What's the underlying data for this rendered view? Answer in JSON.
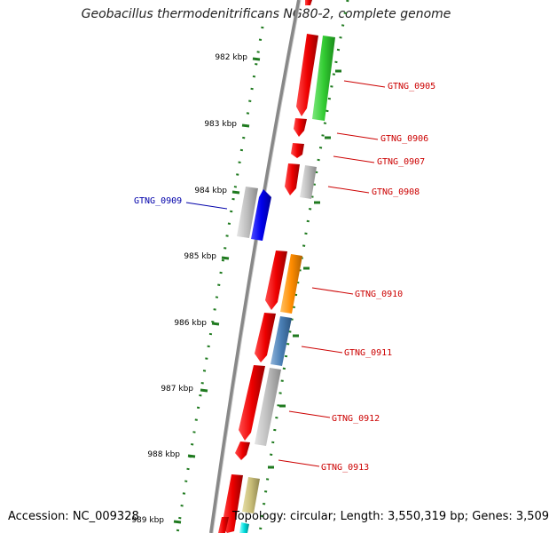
{
  "title": "Geobacillus thermodenitrificans NG80-2, complete genome",
  "accession_text": "Accession: NC_009328",
  "topology_text": "Topology: circular; Length: 3,550,319 bp; Genes: 3,509",
  "colors": {
    "forward_label": "#cc0000",
    "reverse_label": "#0000aa",
    "backbone": "#888888",
    "tick": "#1f7a1f"
  },
  "kbp_ticks": [
    "982 kbp",
    "983 kbp",
    "984 kbp",
    "985 kbp",
    "986 kbp",
    "987 kbp",
    "988 kbp",
    "989 kbp"
  ],
  "gene_labels": [
    {
      "text": "GTNG_0905",
      "strand": "forward"
    },
    {
      "text": "GTNG_0906",
      "strand": "forward"
    },
    {
      "text": "GTNG_0907",
      "strand": "forward"
    },
    {
      "text": "GTNG_0908",
      "strand": "forward"
    },
    {
      "text": "GTNG_0909",
      "strand": "reverse"
    },
    {
      "text": "GTNG_0910",
      "strand": "forward"
    },
    {
      "text": "GTNG_0911",
      "strand": "forward"
    },
    {
      "text": "GTNG_0912",
      "strand": "forward"
    },
    {
      "text": "GTNG_0913",
      "strand": "forward"
    }
  ]
}
